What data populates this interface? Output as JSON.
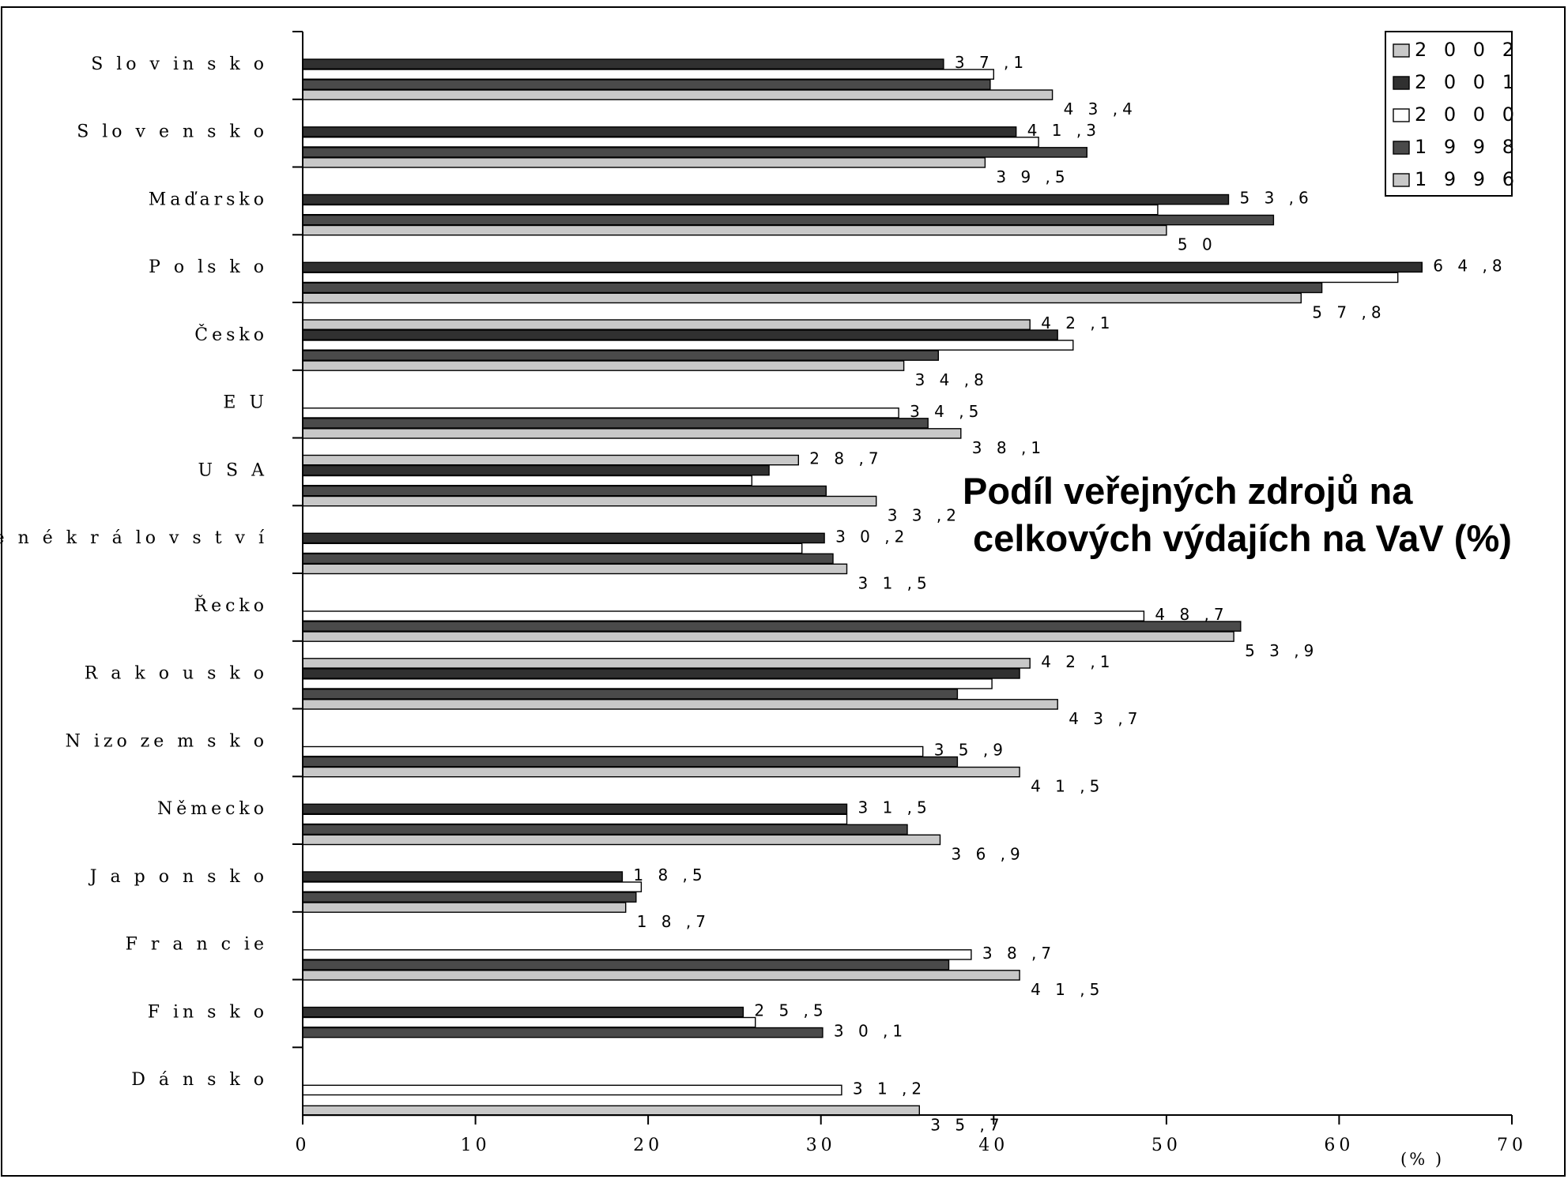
{
  "chart_data": {
    "type": "bar",
    "orientation": "horizontal",
    "title_lines": [
      "Podíl veřejných zdrojů na",
      " celkových výdajích na VaV (%)"
    ],
    "xlabel": "(% )",
    "xlim": [
      0,
      70
    ],
    "xticks": [
      "0",
      "10",
      "20",
      "30",
      "40",
      "50",
      "60",
      "70"
    ],
    "grid": false,
    "legend_position": "top-right",
    "legend": [
      {
        "name": "2 0 0 2",
        "color": "#c8c8c8"
      },
      {
        "name": "2 0 0 1",
        "color": "#303030"
      },
      {
        "name": "2 0 0 0",
        "color": "#ffffff"
      },
      {
        "name": "1 9 9 8",
        "color": "#4a4a4a"
      },
      {
        "name": "1 9 9 6",
        "color": "#c8c8c8"
      }
    ],
    "categories": [
      {
        "name": "S lo v in s k o",
        "values": [
          null,
          37.1,
          40,
          39.8,
          43.4
        ],
        "labels": [
          null,
          "3 7 ,1",
          null,
          null,
          "4 3 ,4"
        ]
      },
      {
        "name": "S lo v e n s k o",
        "values": [
          null,
          41.3,
          42.6,
          45.4,
          39.5
        ],
        "labels": [
          null,
          "4 1 ,3",
          null,
          null,
          "3 9 ,5"
        ]
      },
      {
        "name": "Maďarsko",
        "values": [
          null,
          53.6,
          49.5,
          56.2,
          50
        ],
        "labels": [
          null,
          "5 3 ,6",
          null,
          null,
          "5 0"
        ]
      },
      {
        "name": "P o ls k o",
        "values": [
          null,
          64.8,
          63.4,
          59,
          57.8
        ],
        "labels": [
          null,
          "6 4 ,8",
          null,
          null,
          "5 7 ,8"
        ]
      },
      {
        "name": "Česko",
        "values": [
          42.1,
          43.7,
          44.6,
          36.8,
          34.8
        ],
        "labels": [
          "4 2 ,1",
          null,
          null,
          null,
          "3 4 ,8"
        ]
      },
      {
        "name": "E U",
        "values": [
          null,
          null,
          34.5,
          36.2,
          38.1
        ],
        "labels": [
          null,
          null,
          "3 4 ,5",
          null,
          "3 8 ,1"
        ]
      },
      {
        "name": "U S A",
        "values": [
          28.7,
          27,
          26,
          30.3,
          33.2
        ],
        "labels": [
          "2 8 ,7",
          null,
          null,
          null,
          "3 3 ,2"
        ]
      },
      {
        "name": "S p o je n é k r á lo v s t v í",
        "values": [
          null,
          30.2,
          28.9,
          30.7,
          31.5
        ],
        "labels": [
          null,
          "3 0 ,2",
          null,
          null,
          "3 1 ,5"
        ]
      },
      {
        "name": "Řecko",
        "values": [
          null,
          null,
          48.7,
          54.3,
          53.9
        ],
        "labels": [
          null,
          null,
          "4 8 ,7",
          null,
          "5 3 ,9"
        ]
      },
      {
        "name": "R a k o u s k o",
        "values": [
          42.1,
          41.5,
          39.9,
          37.9,
          43.7
        ],
        "labels": [
          "4 2 ,1",
          null,
          null,
          null,
          "4 3 ,7"
        ]
      },
      {
        "name": "N izo ze m s k o",
        "values": [
          null,
          null,
          35.9,
          37.9,
          41.5
        ],
        "labels": [
          null,
          null,
          "3 5 ,9",
          null,
          "4 1 ,5"
        ]
      },
      {
        "name": "Německo",
        "values": [
          null,
          31.5,
          31.5,
          35,
          36.9
        ],
        "labels": [
          null,
          "3 1 ,5",
          null,
          null,
          "3 6 ,9"
        ]
      },
      {
        "name": "J a p o n s k o",
        "values": [
          null,
          18.5,
          19.6,
          19.3,
          18.7
        ],
        "labels": [
          null,
          "1 8 ,5",
          null,
          null,
          "1 8 ,7"
        ]
      },
      {
        "name": "F r a n c ie",
        "values": [
          null,
          null,
          38.7,
          37.4,
          41.5
        ],
        "labels": [
          null,
          null,
          "3 8 ,7",
          null,
          "4 1 ,5"
        ]
      },
      {
        "name": "F in s k o",
        "values": [
          null,
          25.5,
          26.2,
          30.1,
          null
        ],
        "labels": [
          null,
          "2 5 ,5",
          null,
          "3 0 ,1",
          null
        ]
      },
      {
        "name": "D á n s k o",
        "values": [
          null,
          null,
          31.2,
          null,
          35.7
        ],
        "labels": [
          null,
          null,
          "3 1 ,2",
          null,
          "3 5 ,7"
        ]
      }
    ]
  }
}
